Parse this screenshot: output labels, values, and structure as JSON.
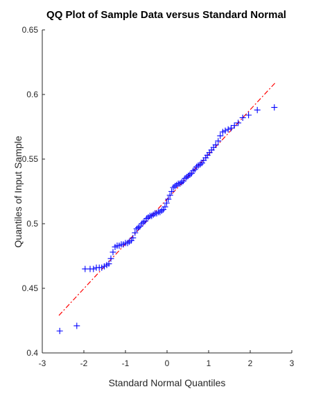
{
  "chart_data": {
    "type": "scatter",
    "title": "QQ Plot of Sample Data versus Standard Normal",
    "xlabel": "Standard Normal Quantiles",
    "ylabel": "Quantiles of Input Sample",
    "xlim": [
      -3,
      3
    ],
    "ylim": [
      0.4,
      0.65
    ],
    "xticks": [
      "-3",
      "-2",
      "-1",
      "0",
      "1",
      "2",
      "3"
    ],
    "yticks": [
      "0.4",
      "0.45",
      "0.5",
      "0.55",
      "0.6",
      "0.65"
    ],
    "grid": false,
    "marker": "plus",
    "colors": {
      "points": "#0000ff",
      "reference_line": "#ff0000",
      "axes": "#262626"
    },
    "reference_line": {
      "x": [
        -2.6,
        2.6
      ],
      "y": [
        0.429,
        0.609
      ],
      "style": "dash-dot"
    },
    "points": [
      [
        -2.58,
        0.417
      ],
      [
        -2.17,
        0.421
      ],
      [
        -1.97,
        0.465
      ],
      [
        -1.85,
        0.465
      ],
      [
        -1.77,
        0.465
      ],
      [
        -1.7,
        0.466
      ],
      [
        -1.63,
        0.466
      ],
      [
        -1.57,
        0.466
      ],
      [
        -1.51,
        0.467
      ],
      [
        -1.45,
        0.468
      ],
      [
        -1.4,
        0.469
      ],
      [
        -1.35,
        0.473
      ],
      [
        -1.3,
        0.478
      ],
      [
        -1.25,
        0.482
      ],
      [
        -1.2,
        0.483
      ],
      [
        -1.15,
        0.483
      ],
      [
        -1.1,
        0.484
      ],
      [
        -1.05,
        0.484
      ],
      [
        -1.0,
        0.485
      ],
      [
        -0.95,
        0.485
      ],
      [
        -0.91,
        0.486
      ],
      [
        -0.86,
        0.487
      ],
      [
        -0.82,
        0.489
      ],
      [
        -0.77,
        0.493
      ],
      [
        -0.73,
        0.496
      ],
      [
        -0.69,
        0.497
      ],
      [
        -0.65,
        0.498
      ],
      [
        -0.61,
        0.5
      ],
      [
        -0.57,
        0.501
      ],
      [
        -0.53,
        0.502
      ],
      [
        -0.49,
        0.504
      ],
      [
        -0.45,
        0.505
      ],
      [
        -0.41,
        0.506
      ],
      [
        -0.37,
        0.506
      ],
      [
        -0.33,
        0.507
      ],
      [
        -0.29,
        0.508
      ],
      [
        -0.25,
        0.508
      ],
      [
        -0.21,
        0.509
      ],
      [
        -0.17,
        0.509
      ],
      [
        -0.13,
        0.51
      ],
      [
        -0.09,
        0.511
      ],
      [
        -0.05,
        0.513
      ],
      [
        -0.01,
        0.516
      ],
      [
        0.03,
        0.519
      ],
      [
        0.07,
        0.522
      ],
      [
        0.11,
        0.525
      ],
      [
        0.15,
        0.528
      ],
      [
        0.19,
        0.529
      ],
      [
        0.23,
        0.53
      ],
      [
        0.27,
        0.531
      ],
      [
        0.31,
        0.531
      ],
      [
        0.35,
        0.532
      ],
      [
        0.39,
        0.533
      ],
      [
        0.43,
        0.535
      ],
      [
        0.47,
        0.536
      ],
      [
        0.51,
        0.537
      ],
      [
        0.55,
        0.538
      ],
      [
        0.59,
        0.539
      ],
      [
        0.63,
        0.541
      ],
      [
        0.67,
        0.542
      ],
      [
        0.71,
        0.544
      ],
      [
        0.75,
        0.545
      ],
      [
        0.8,
        0.546
      ],
      [
        0.84,
        0.547
      ],
      [
        0.88,
        0.549
      ],
      [
        0.93,
        0.551
      ],
      [
        0.97,
        0.553
      ],
      [
        1.02,
        0.555
      ],
      [
        1.07,
        0.557
      ],
      [
        1.12,
        0.559
      ],
      [
        1.17,
        0.561
      ],
      [
        1.23,
        0.564
      ],
      [
        1.28,
        0.568
      ],
      [
        1.34,
        0.571
      ],
      [
        1.4,
        0.572
      ],
      [
        1.47,
        0.573
      ],
      [
        1.54,
        0.574
      ],
      [
        1.62,
        0.576
      ],
      [
        1.71,
        0.578
      ],
      [
        1.82,
        0.582
      ],
      [
        1.96,
        0.584
      ],
      [
        2.17,
        0.588
      ],
      [
        2.58,
        0.59
      ]
    ]
  }
}
